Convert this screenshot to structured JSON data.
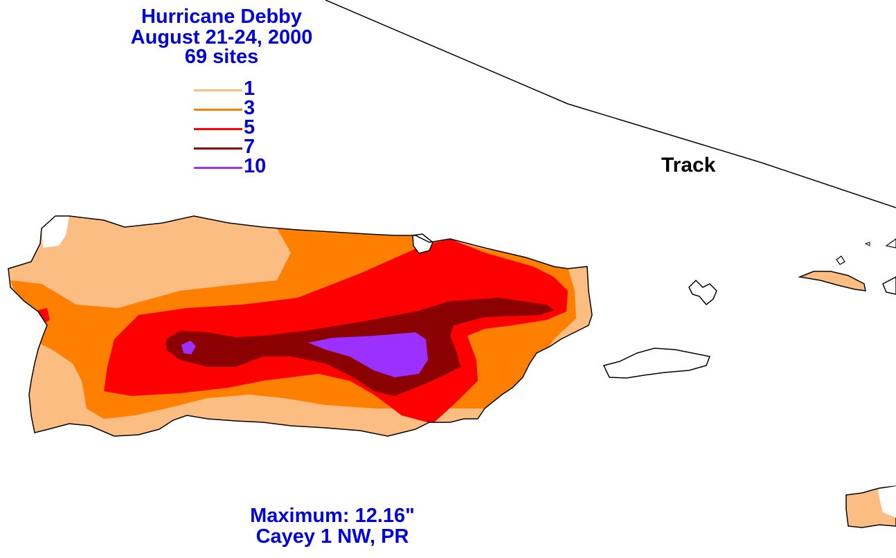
{
  "title": {
    "line1": "Hurricane Debby",
    "line2": "August 21-24, 2000",
    "line3": "69 sites"
  },
  "legend": [
    {
      "label": "1",
      "color": "#fbbd82"
    },
    {
      "label": "3",
      "color": "#ff8000"
    },
    {
      "label": "5",
      "color": "#ff0000"
    },
    {
      "label": "7",
      "color": "#8b0000"
    },
    {
      "label": "10",
      "color": "#9b30ff"
    }
  ],
  "track": {
    "label": "Track"
  },
  "footer": {
    "line1": "Maximum:  12.16\"",
    "line2": "Cayey 1 NW, PR"
  },
  "colors": {
    "text": "#0000dd",
    "outline": "#000000",
    "background": "#ffffff"
  }
}
